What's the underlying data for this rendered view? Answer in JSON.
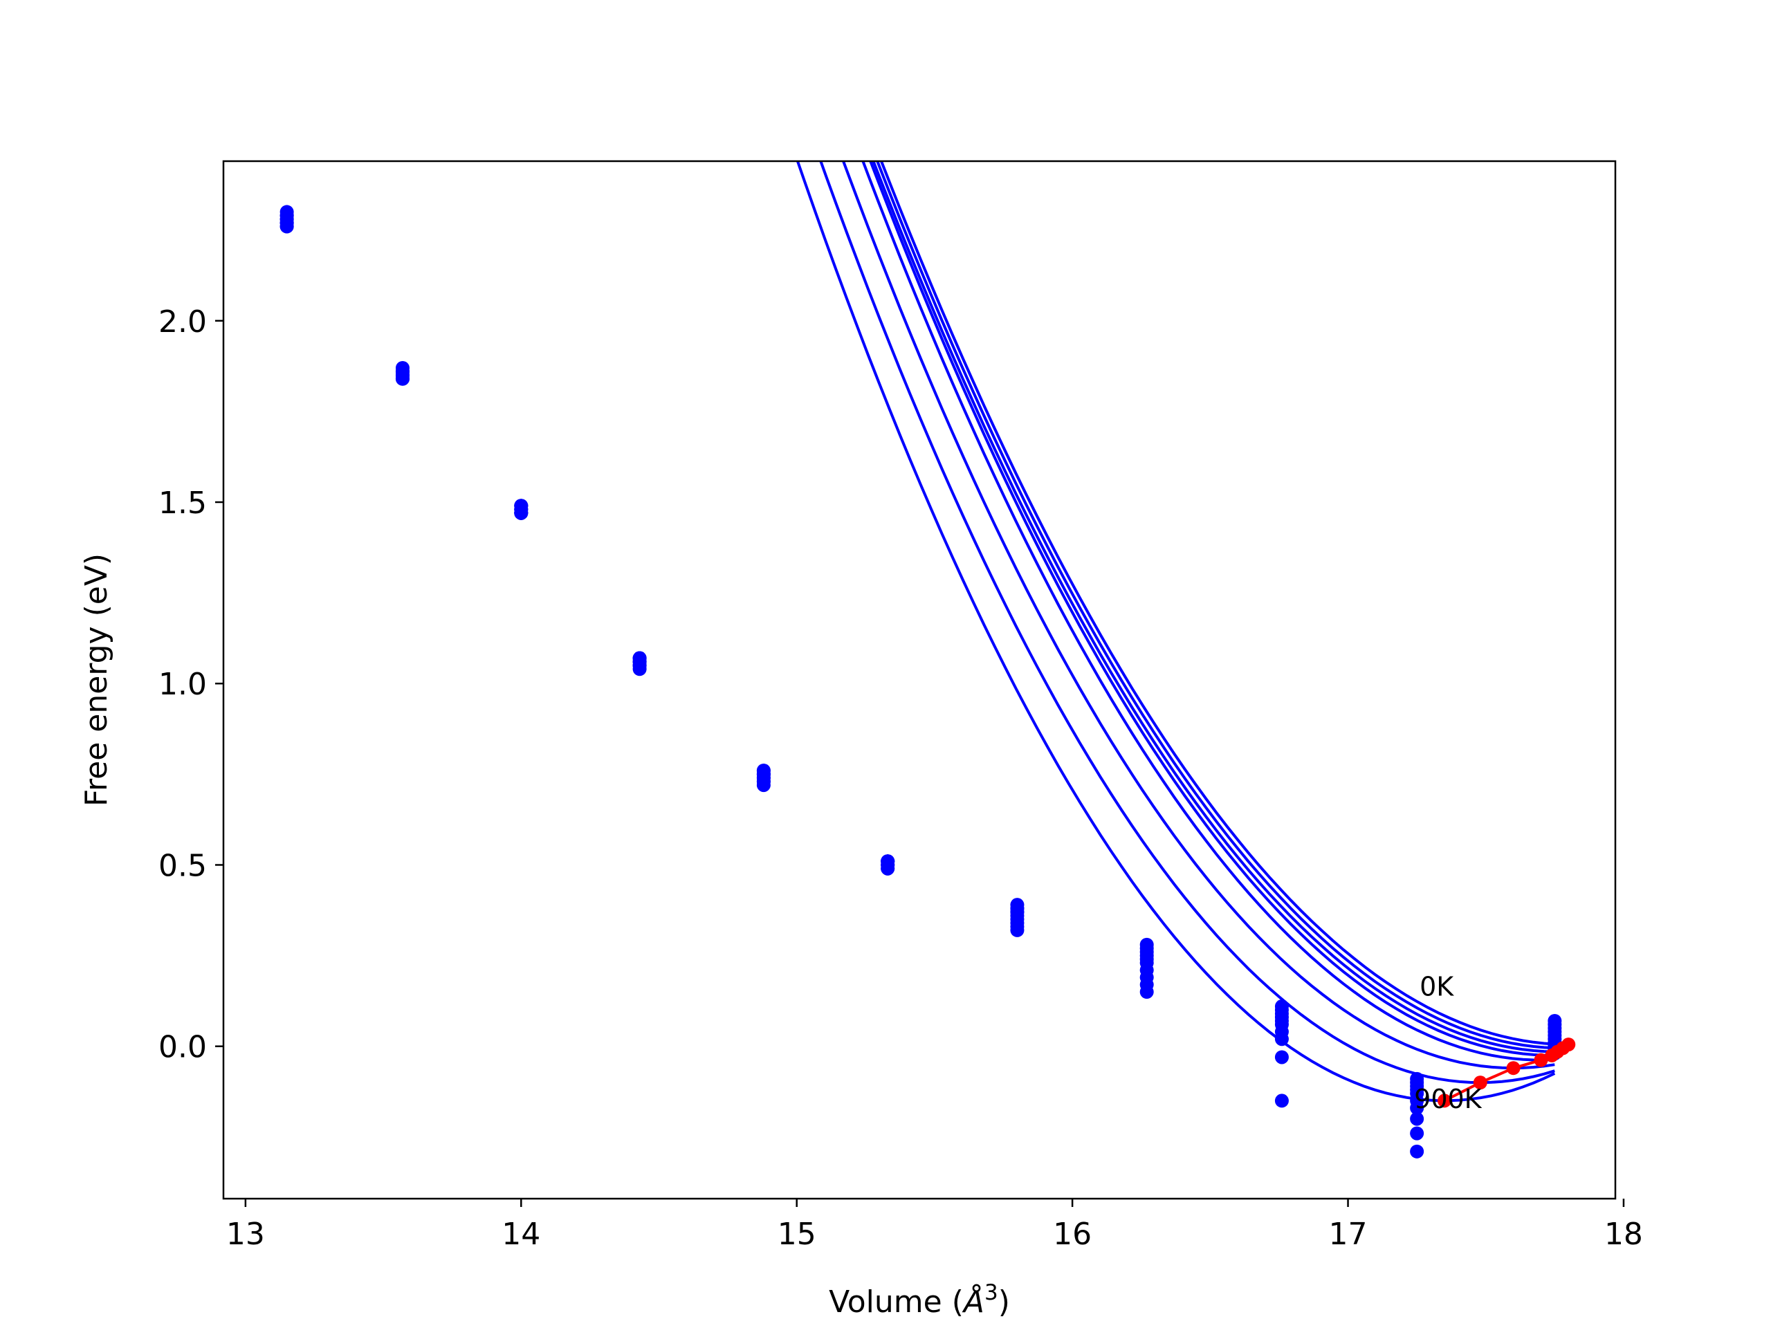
{
  "chart_data": {
    "type": "line",
    "title": "",
    "xlabel": "Volume (Å³)",
    "xlabel_main": "Volume (",
    "xlabel_symbol": "Å",
    "xlabel_exp": "3",
    "xlabel_close": ")",
    "ylabel": "Free energy (eV)",
    "xlim": [
      12.92,
      17.97
    ],
    "ylim": [
      -0.42,
      2.44
    ],
    "xticks": [
      13,
      14,
      15,
      16,
      17,
      18
    ],
    "xtick_labels": [
      "13",
      "14",
      "15",
      "16",
      "17",
      "18"
    ],
    "yticks": [
      0.0,
      0.5,
      1.0,
      1.5,
      2.0
    ],
    "ytick_labels": [
      "0.0",
      "0.5",
      "1.0",
      "1.5",
      "2.0"
    ],
    "grid": false,
    "legend": "none",
    "colors": {
      "curves": "#0000ff",
      "points": "#0000ff",
      "minima": "#ff0000",
      "axes": "#000000"
    },
    "annotations": [
      {
        "text": "0K",
        "x": 17.26,
        "y": 0.14
      },
      {
        "text": "900K",
        "x": 17.24,
        "y": -0.17
      }
    ],
    "volumes": [
      13.15,
      13.57,
      14.0,
      14.43,
      14.88,
      15.33,
      15.8,
      16.27,
      16.76,
      17.25,
      17.75
    ],
    "series": [
      {
        "name": "0K",
        "values": [
          2.26,
          1.84,
          1.47,
          1.07,
          0.76,
          0.51,
          0.39,
          0.28,
          0.11,
          -0.09,
          0.07
        ]
      },
      {
        "values": [
          2.26,
          1.84,
          1.47,
          1.07,
          0.76,
          0.51,
          0.38,
          0.27,
          0.1,
          -0.1,
          0.06
        ]
      },
      {
        "values": [
          2.27,
          1.84,
          1.47,
          1.07,
          0.75,
          0.51,
          0.38,
          0.26,
          0.09,
          -0.11,
          0.05
        ]
      },
      {
        "values": [
          2.27,
          1.85,
          1.47,
          1.06,
          0.75,
          0.51,
          0.37,
          0.25,
          0.08,
          -0.12,
          0.04
        ]
      },
      {
        "values": [
          2.27,
          1.85,
          1.48,
          1.06,
          0.75,
          0.51,
          0.37,
          0.24,
          0.07,
          -0.13,
          0.03
        ]
      },
      {
        "values": [
          2.28,
          1.85,
          1.48,
          1.06,
          0.74,
          0.5,
          0.36,
          0.23,
          0.06,
          -0.15,
          0.02
        ]
      },
      {
        "values": [
          2.28,
          1.86,
          1.48,
          1.05,
          0.74,
          0.5,
          0.35,
          0.21,
          0.04,
          -0.17,
          0.01
        ]
      },
      {
        "values": [
          2.29,
          1.86,
          1.49,
          1.05,
          0.73,
          0.5,
          0.34,
          0.19,
          0.02,
          -0.2,
          0.0
        ]
      },
      {
        "values": [
          2.29,
          1.86,
          1.49,
          1.05,
          0.73,
          0.49,
          0.33,
          0.17,
          -0.03,
          -0.24,
          -0.01
        ]
      },
      {
        "name": "900K",
        "values": [
          2.3,
          1.87,
          1.49,
          1.04,
          0.72,
          0.49,
          0.32,
          0.15,
          -0.15,
          -0.29,
          -0.02
        ]
      }
    ],
    "fit_curves": [
      {
        "name": "0K",
        "v0": 17.8,
        "e0": 0.005,
        "a": 0.3917
      },
      {
        "v0": 17.78,
        "e0": -0.005,
        "a": 0.3951
      },
      {
        "v0": 17.76,
        "e0": -0.015,
        "a": 0.3985
      },
      {
        "v0": 17.74,
        "e0": -0.025,
        "a": 0.4032
      },
      {
        "v0": 17.7,
        "e0": -0.038,
        "a": 0.4095
      },
      {
        "v0": 17.6,
        "e0": -0.06,
        "a": 0.423
      },
      {
        "v0": 17.48,
        "e0": -0.1,
        "a": 0.4435
      },
      {
        "name": "900K",
        "v0": 17.35,
        "e0": -0.15,
        "a": 0.4702
      }
    ],
    "fit_range": [
      13.15,
      17.75
    ],
    "minima_path": {
      "x": [
        17.35,
        17.48,
        17.6,
        17.7,
        17.74,
        17.76,
        17.78,
        17.8
      ],
      "y": [
        -0.15,
        -0.1,
        -0.06,
        -0.038,
        -0.025,
        -0.015,
        -0.005,
        0.005
      ]
    }
  }
}
